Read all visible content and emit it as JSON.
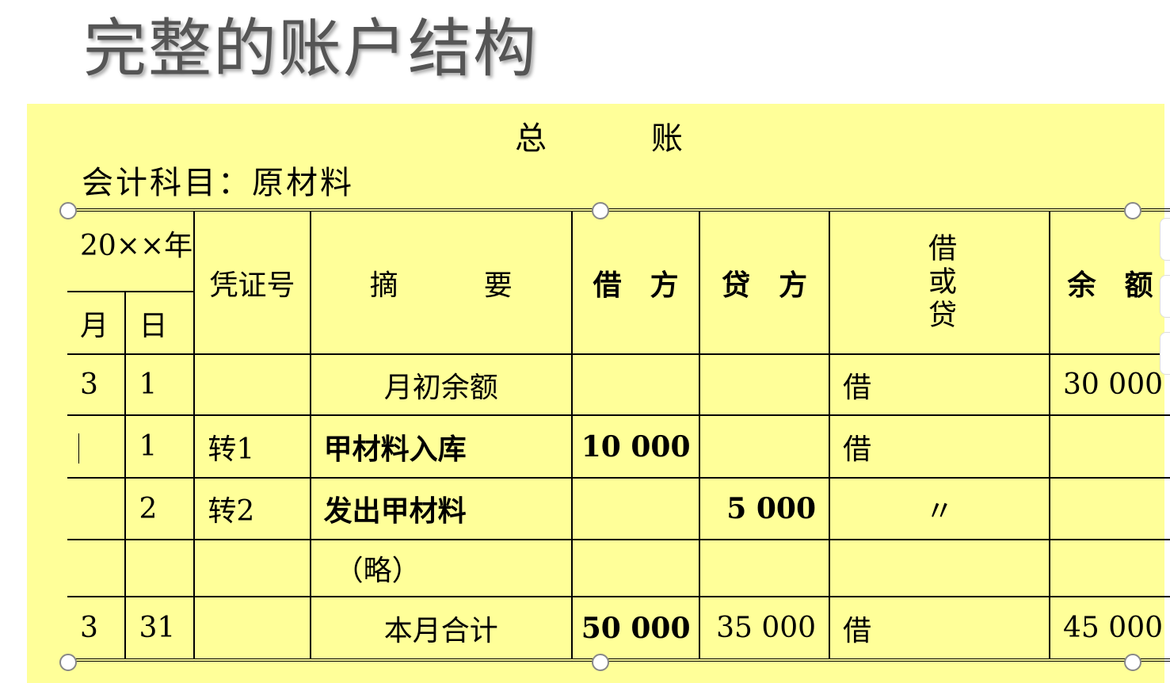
{
  "slide_title": "完整的账户结构",
  "ledger": {
    "title_left": "总",
    "title_right": "账",
    "subject": "会计科目：原材料",
    "headers": {
      "year": "20××年",
      "month": "月",
      "day": "日",
      "voucher": "凭证号",
      "summary": "摘　　　要",
      "debit": "借　方",
      "credit": "贷　方",
      "dr_or_cr": "借或贷",
      "balance": "余　额"
    },
    "rows": [
      {
        "month": "3",
        "day": "1",
        "voucher": "",
        "summary": "月初余额",
        "debit": "",
        "credit": "",
        "dr_or_cr": "借",
        "balance": "30 000"
      },
      {
        "month": "",
        "day": "1",
        "voucher": "转1",
        "summary": "甲材料入库",
        "debit": "10 000",
        "credit": "",
        "dr_or_cr": "借",
        "balance": ""
      },
      {
        "month": "",
        "day": "2",
        "voucher": "转2",
        "summary": "发出甲材料",
        "debit": "",
        "credit": "5 000",
        "dr_or_cr": "〃",
        "balance": ""
      },
      {
        "month": "",
        "day": "",
        "voucher": "",
        "summary": "（略）",
        "debit": "",
        "credit": "",
        "dr_or_cr": "",
        "balance": ""
      },
      {
        "month": "3",
        "day": "31",
        "voucher": "",
        "summary": "本月合计",
        "debit": "50 000",
        "credit": "35 000",
        "dr_or_cr": "借",
        "balance": "45 000"
      }
    ]
  },
  "colors": {
    "panel": "#FFFF99",
    "title": "#555555"
  }
}
